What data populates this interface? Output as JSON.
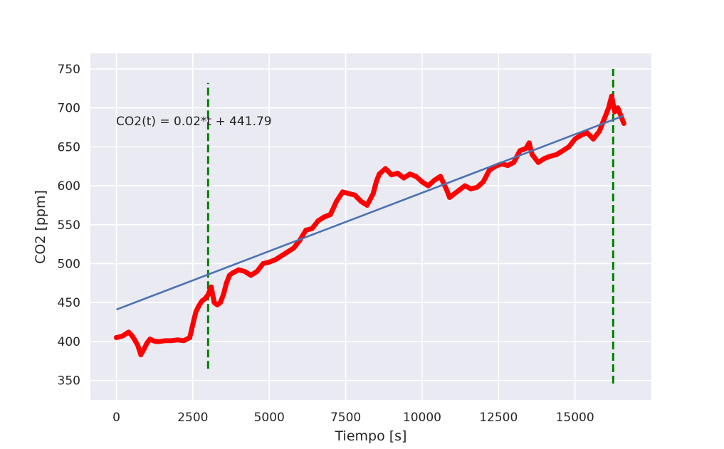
{
  "chart_data": {
    "type": "scatter",
    "title": "",
    "xlabel": "Tiempo [s]",
    "ylabel": "CO2 [ppm]",
    "xlim": [
      -850,
      17500
    ],
    "ylim": [
      325,
      770
    ],
    "xticks": [
      0,
      2500,
      5000,
      7500,
      10000,
      12500,
      15000
    ],
    "yticks": [
      350,
      400,
      450,
      500,
      550,
      600,
      650,
      700,
      750
    ],
    "grid": true,
    "annotation": "CO2(t) = 0.02*t + 441.79",
    "colors": {
      "background": "#eaeaf2",
      "grid": "#ffffff",
      "measured": "#ff0000",
      "fit": "#4c72b0",
      "markers": "#008000"
    },
    "series": [
      {
        "kind": "points",
        "x": [
          0,
          200,
          400,
          500,
          600,
          700,
          800,
          900,
          1000,
          1100,
          1200,
          1300,
          1400,
          1600,
          1800,
          2000,
          2200,
          2400,
          2500,
          2600,
          2700,
          2800,
          2900,
          3000,
          3100,
          3200,
          3300,
          3400,
          3500,
          3600,
          3700,
          3800,
          3900,
          4000,
          4200,
          4400,
          4600,
          4800,
          5000,
          5200,
          5400,
          5600,
          5800,
          6000,
          6200,
          6400,
          6600,
          6800,
          7000,
          7200,
          7400,
          7600,
          7800,
          8000,
          8200,
          8400,
          8500,
          8600,
          8800,
          9000,
          9200,
          9400,
          9600,
          9800,
          10000,
          10200,
          10400,
          10600,
          10800,
          10900,
          11000,
          11200,
          11400,
          11600,
          11800,
          12000,
          12200,
          12400,
          12600,
          12800,
          13000,
          13200,
          13400,
          13500,
          13600,
          13800,
          14000,
          14200,
          14400,
          14600,
          14800,
          15000,
          15200,
          15400,
          15600,
          15800,
          15900,
          16000,
          16100,
          16200,
          16300,
          16400,
          16500,
          16600
        ],
        "y": [
          405,
          407,
          412,
          408,
          402,
          395,
          383,
          390,
          398,
          403,
          401,
          400,
          400,
          401,
          401,
          402,
          401,
          405,
          422,
          438,
          446,
          452,
          455,
          460,
          470,
          450,
          447,
          450,
          460,
          475,
          485,
          488,
          490,
          492,
          490,
          485,
          490,
          500,
          502,
          505,
          510,
          515,
          520,
          530,
          543,
          545,
          555,
          560,
          563,
          580,
          592,
          590,
          588,
          580,
          575,
          590,
          605,
          615,
          622,
          614,
          616,
          610,
          615,
          612,
          605,
          600,
          607,
          612,
          595,
          585,
          588,
          594,
          600,
          596,
          598,
          605,
          620,
          625,
          628,
          626,
          630,
          645,
          648,
          655,
          640,
          630,
          635,
          638,
          640,
          645,
          650,
          660,
          665,
          668,
          660,
          670,
          680,
          690,
          700,
          715,
          695,
          700,
          690,
          680
        ]
      },
      {
        "kind": "line",
        "x": [
          0,
          16600
        ],
        "y": [
          441,
          690
        ]
      },
      {
        "kind": "vline",
        "x": [
          3000,
          3000
        ],
        "y": [
          365,
          732
        ]
      },
      {
        "kind": "vline",
        "x": [
          16250,
          16250
        ],
        "y": [
          346,
          750
        ]
      }
    ]
  }
}
